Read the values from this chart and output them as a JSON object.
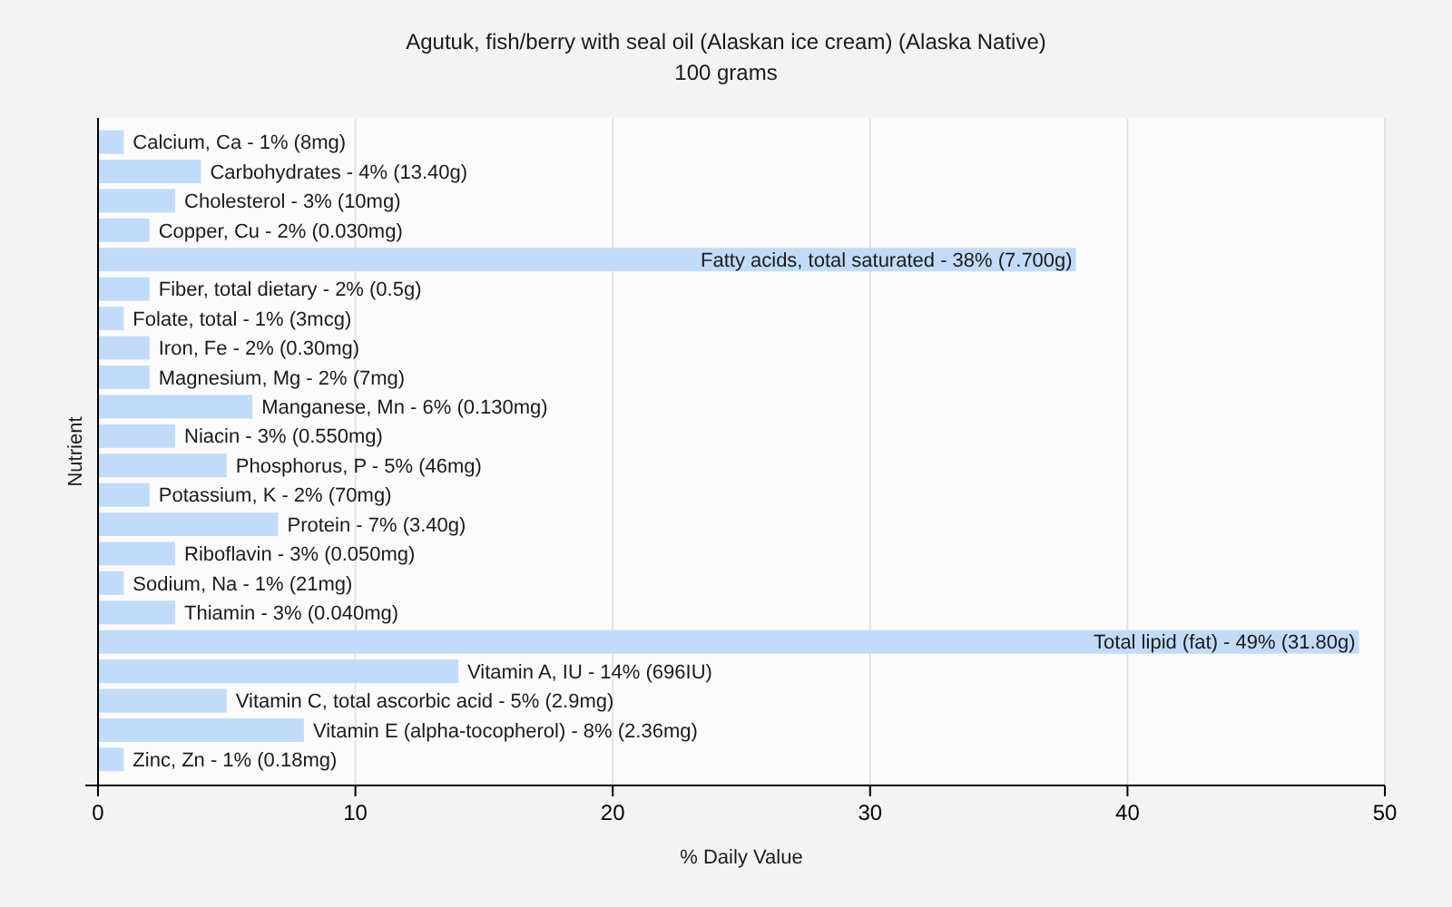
{
  "chart_data": {
    "type": "bar",
    "orientation": "horizontal",
    "title": "Agutuk, fish/berry with seal oil (Alaskan ice cream) (Alaska Native)",
    "subtitle": "100 grams",
    "xlabel": "% Daily Value",
    "ylabel": "Nutrient",
    "categories": [
      "Calcium, Ca - 1% (8mg)",
      "Carbohydrates - 4% (13.40g)",
      "Cholesterol - 3% (10mg)",
      "Copper, Cu - 2% (0.030mg)",
      "Fatty acids, total saturated - 38% (7.700g)",
      "Fiber, total dietary - 2% (0.5g)",
      "Folate, total - 1% (3mcg)",
      "Iron, Fe - 2% (0.30mg)",
      "Magnesium, Mg - 2% (7mg)",
      "Manganese, Mn - 6% (0.130mg)",
      "Niacin - 3% (0.550mg)",
      "Phosphorus, P - 5% (46mg)",
      "Potassium, K - 2% (70mg)",
      "Protein - 7% (3.40g)",
      "Riboflavin - 3% (0.050mg)",
      "Sodium, Na - 1% (21mg)",
      "Thiamin - 3% (0.040mg)",
      "Total lipid (fat) - 49% (31.80g)",
      "Vitamin A, IU - 14% (696IU)",
      "Vitamin C, total ascorbic acid - 5% (2.9mg)",
      "Vitamin E (alpha-tocopherol) - 8% (2.36mg)",
      "Zinc, Zn - 1% (0.18mg)"
    ],
    "values": [
      1,
      4,
      3,
      2,
      38,
      2,
      1,
      2,
      2,
      6,
      3,
      5,
      2,
      7,
      3,
      1,
      3,
      49,
      14,
      5,
      8,
      1
    ],
    "color": "#c2dbf8",
    "xlim": [
      0,
      50
    ],
    "xticks": [
      0,
      10,
      20,
      30,
      40,
      50
    ],
    "grid": "x"
  }
}
